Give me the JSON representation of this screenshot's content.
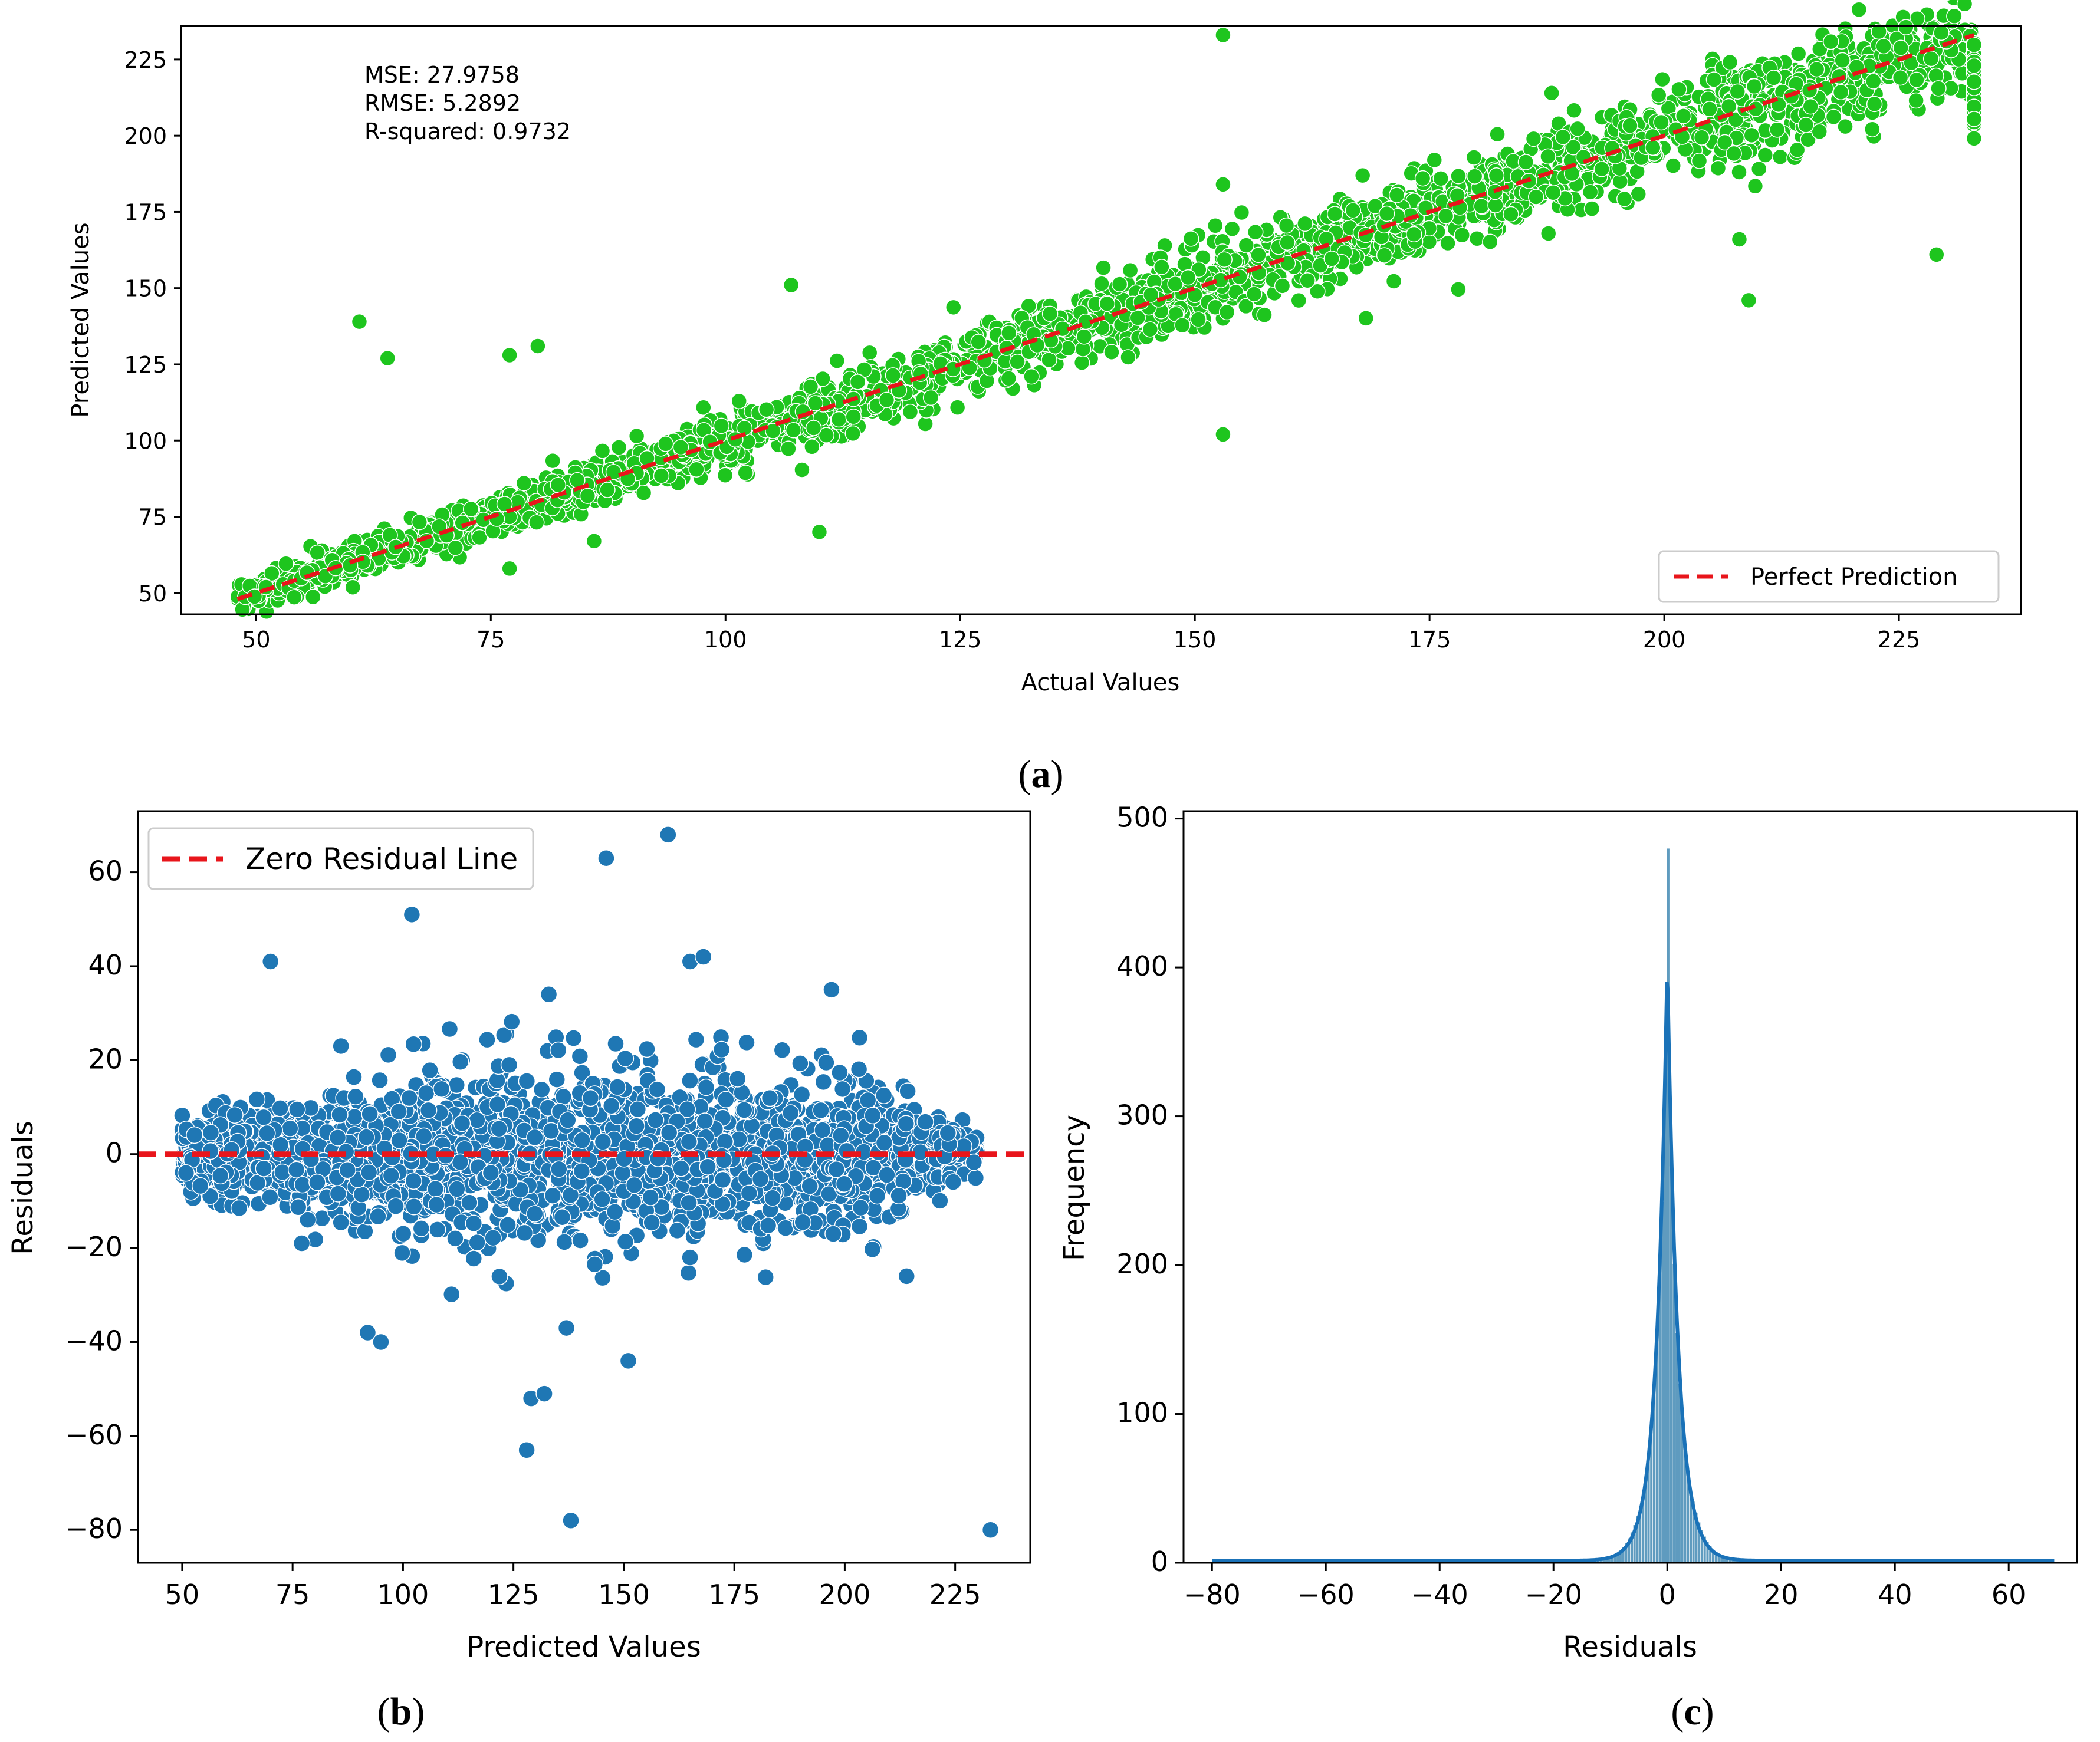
{
  "chart_data": [
    {
      "panel": "(a)",
      "panel_letter": "a",
      "type": "scatter",
      "xlabel": "Actual Values",
      "ylabel": "Predicted Values",
      "xlim": [
        42,
        238
      ],
      "ylim": [
        43,
        236
      ],
      "xticks": [
        50,
        75,
        100,
        125,
        150,
        175,
        200,
        225
      ],
      "yticks": [
        50,
        75,
        100,
        125,
        150,
        175,
        200,
        225
      ],
      "stats": {
        "mse": "MSE: 27.9758",
        "rmse": "RMSE: 5.2892",
        "r2": "R-squared: 0.9732"
      },
      "legend": {
        "label": "Perfect Prediction",
        "position": "lower right"
      },
      "reference_line": {
        "x": [
          48,
          233
        ],
        "y": [
          48,
          233
        ]
      },
      "point_color": "#1ec51e",
      "line_color": "#e8151b",
      "outliers": [
        [
          61,
          139
        ],
        [
          64,
          127
        ],
        [
          77,
          128
        ],
        [
          80,
          131
        ],
        [
          107,
          151
        ],
        [
          110,
          70
        ],
        [
          153,
          233
        ],
        [
          153,
          102
        ],
        [
          153,
          184
        ],
        [
          229,
          161
        ],
        [
          209,
          146
        ],
        [
          188,
          214
        ],
        [
          208,
          166
        ],
        [
          77,
          58
        ],
        [
          86,
          67
        ]
      ]
    },
    {
      "panel": "(b)",
      "panel_letter": "b",
      "type": "scatter",
      "xlabel": "Predicted Values",
      "ylabel": "Residuals",
      "xlim": [
        40,
        242
      ],
      "ylim": [
        -87,
        73
      ],
      "xticks": [
        50,
        75,
        100,
        125,
        150,
        175,
        200,
        225
      ],
      "yticks": [
        -80,
        -60,
        -40,
        -20,
        0,
        20,
        40,
        60
      ],
      "legend": {
        "label": "Zero Residual Line",
        "position": "upper left"
      },
      "reference_line": {
        "y": 0
      },
      "point_color": "#1f77b4",
      "line_color": "#e8151b",
      "outliers": [
        [
          102,
          51
        ],
        [
          146,
          63
        ],
        [
          160,
          68
        ],
        [
          70,
          41
        ],
        [
          165,
          41
        ],
        [
          168,
          42
        ],
        [
          133,
          34
        ],
        [
          197,
          35
        ],
        [
          138,
          -78
        ],
        [
          233,
          -80
        ],
        [
          128,
          -63
        ],
        [
          129,
          -52
        ],
        [
          132,
          -51
        ],
        [
          137,
          -37
        ],
        [
          151,
          -44
        ],
        [
          92,
          -38
        ],
        [
          95,
          -40
        ],
        [
          214,
          -26
        ]
      ]
    },
    {
      "panel": "(c)",
      "panel_letter": "c",
      "type": "histogram",
      "xlabel": "Residuals",
      "ylabel": "Frequency",
      "xlim": [
        -85,
        72
      ],
      "ylim": [
        0,
        505
      ],
      "xticks": [
        -80,
        -60,
        -40,
        -20,
        0,
        20,
        40,
        60
      ],
      "yticks": [
        0,
        100,
        200,
        300,
        400,
        500
      ],
      "peak_frequency": 480,
      "kde_peak": 398,
      "data_range": [
        -80,
        68
      ],
      "bar_color": "#5f9bbf",
      "kde_color": "#1a72b8"
    }
  ]
}
